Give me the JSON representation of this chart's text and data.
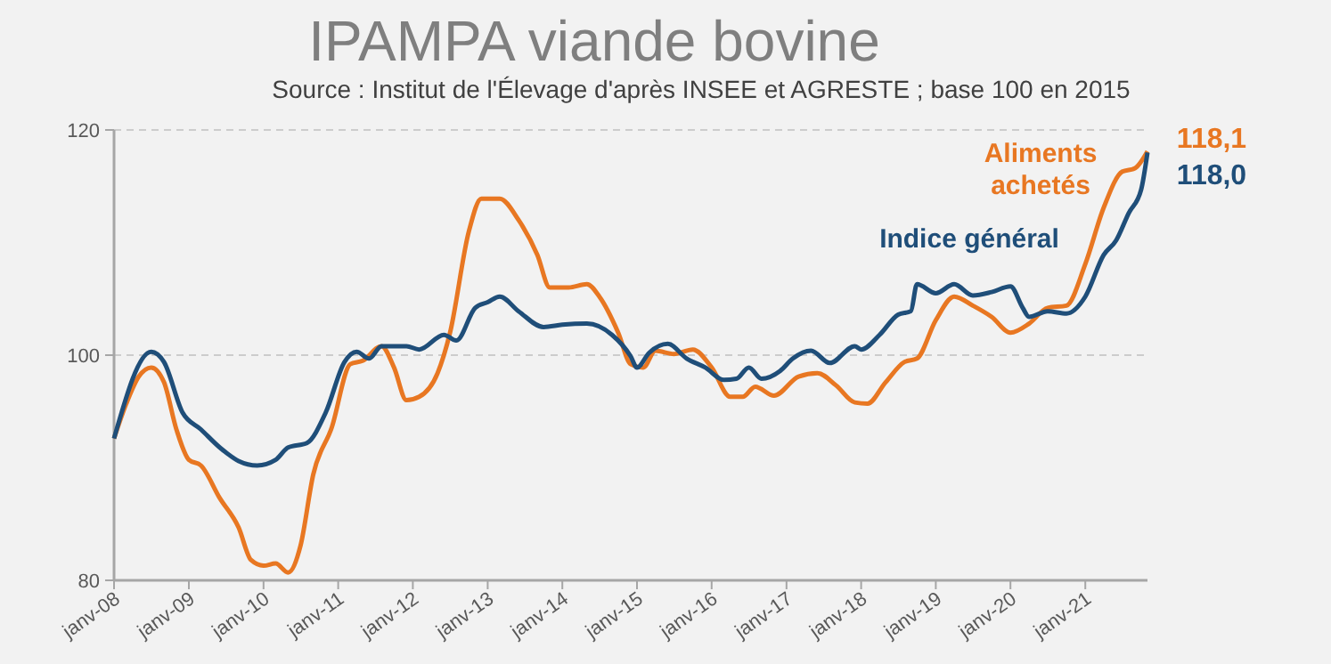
{
  "chart_data": {
    "type": "line",
    "title": "IPAMPA viande bovine",
    "subtitle": "Source : Institut de l'Élevage d'après INSEE et AGRESTE ; base 100 en 2015",
    "ylim": [
      80,
      120
    ],
    "yticks": [
      80,
      100,
      120
    ],
    "xlim": [
      "2008-01",
      "2021-11"
    ],
    "xticks": [
      {
        "value": "2008-01",
        "label": "janv-08"
      },
      {
        "value": "2009-01",
        "label": "janv-09"
      },
      {
        "value": "2010-01",
        "label": "janv-10"
      },
      {
        "value": "2011-01",
        "label": "janv-11"
      },
      {
        "value": "2012-01",
        "label": "janv-12"
      },
      {
        "value": "2013-01",
        "label": "janv-13"
      },
      {
        "value": "2014-01",
        "label": "janv-14"
      },
      {
        "value": "2015-01",
        "label": "janv-15"
      },
      {
        "value": "2016-01",
        "label": "janv-16"
      },
      {
        "value": "2017-01",
        "label": "janv-17"
      },
      {
        "value": "2018-01",
        "label": "janv-18"
      },
      {
        "value": "2019-01",
        "label": "janv-19"
      },
      {
        "value": "2020-01",
        "label": "janv-20"
      },
      {
        "value": "2021-01",
        "label": "janv-21"
      }
    ],
    "grid": "y",
    "legend": false,
    "marker": "none",
    "line_style": "solid",
    "series": [
      {
        "name": "Aliments achetés",
        "color": "#e87722",
        "x": [
          "2008-01",
          "2008-03",
          "2008-05",
          "2008-07",
          "2008-09",
          "2008-11",
          "2009-01",
          "2009-03",
          "2009-06",
          "2009-09",
          "2009-11",
          "2010-01",
          "2010-03",
          "2010-05",
          "2010-07",
          "2010-09",
          "2010-12",
          "2011-03",
          "2011-05",
          "2011-08",
          "2011-10",
          "2011-12",
          "2012-02",
          "2012-05",
          "2012-07",
          "2012-10",
          "2012-12",
          "2013-03",
          "2013-06",
          "2013-09",
          "2013-11",
          "2014-02",
          "2014-05",
          "2014-07",
          "2014-10",
          "2014-12",
          "2015-02",
          "2015-04",
          "2015-07",
          "2015-10",
          "2016-01",
          "2016-04",
          "2016-06",
          "2016-08",
          "2016-11",
          "2017-03",
          "2017-06",
          "2017-09",
          "2017-12",
          "2018-02",
          "2018-05",
          "2018-08",
          "2018-10",
          "2019-01",
          "2019-04",
          "2019-07",
          "2019-10",
          "2020-01",
          "2020-04",
          "2020-07",
          "2020-10",
          "2021-01",
          "2021-04",
          "2021-07",
          "2021-09",
          "2021-11"
        ],
        "values": [
          92.6,
          95.7,
          98.1,
          98.9,
          97.6,
          93.4,
          90.7,
          90.2,
          87.3,
          84.7,
          81.8,
          81.3,
          81.5,
          80.7,
          83.1,
          89.4,
          93.6,
          99.2,
          99.5,
          100.8,
          98.9,
          96.0,
          96.3,
          98.4,
          102.0,
          111.0,
          113.9,
          113.9,
          112.0,
          108.9,
          106.0,
          106.0,
          106.3,
          105.2,
          102.0,
          99.2,
          98.9,
          100.4,
          100.1,
          100.5,
          98.9,
          96.3,
          96.3,
          97.2,
          96.4,
          98.1,
          98.4,
          97.3,
          95.8,
          95.7,
          97.6,
          99.4,
          99.7,
          103.1,
          105.2,
          104.4,
          103.4,
          102.0,
          102.8,
          104.2,
          104.4,
          108.1,
          113.1,
          116.3,
          116.6,
          118.1
        ],
        "value_labels": [
          null,
          null,
          null,
          null,
          null,
          null,
          null,
          null,
          null,
          null,
          null,
          null,
          null,
          null,
          null,
          null,
          null,
          null,
          null,
          null,
          null,
          null,
          null,
          null,
          null,
          null,
          null,
          null,
          null,
          null,
          null,
          null,
          null,
          null,
          null,
          null,
          null,
          null,
          null,
          null,
          null,
          null,
          null,
          null,
          null,
          null,
          null,
          null,
          null,
          null,
          null,
          null,
          null,
          null,
          null,
          null,
          null,
          null,
          null,
          null,
          null,
          null,
          null,
          null,
          null,
          "118,1"
        ]
      },
      {
        "name": "Indice général",
        "color": "#1f4e79",
        "x": [
          "2008-01",
          "2008-07",
          "2008-09",
          "2008-12",
          "2009-03",
          "2009-06",
          "2009-09",
          "2009-12",
          "2010-03",
          "2010-05",
          "2010-08",
          "2010-11",
          "2011-02",
          "2011-04",
          "2011-06",
          "2011-08",
          "2011-12",
          "2012-02",
          "2012-06",
          "2012-08",
          "2012-11",
          "2013-01",
          "2013-03",
          "2013-06",
          "2013-10",
          "2014-01",
          "2014-05",
          "2014-09",
          "2014-12",
          "2015-01",
          "2015-03",
          "2015-06",
          "2015-09",
          "2015-12",
          "2016-03",
          "2016-05",
          "2016-07",
          "2016-09",
          "2016-12",
          "2017-02",
          "2017-05",
          "2017-08",
          "2017-12",
          "2018-01",
          "2018-04",
          "2018-07",
          "2018-09",
          "2018-10",
          "2019-01",
          "2019-04",
          "2019-07",
          "2019-10",
          "2020-01",
          "2020-03",
          "2020-04",
          "2020-07",
          "2020-10",
          "2021-01",
          "2021-04",
          "2021-06",
          "2021-08",
          "2021-10",
          "2021-11"
        ],
        "values": [
          92.6,
          100.3,
          99.4,
          94.9,
          93.4,
          91.8,
          90.6,
          90.2,
          90.7,
          91.8,
          92.2,
          94.9,
          99.4,
          100.3,
          99.7,
          100.8,
          100.8,
          100.5,
          101.8,
          101.3,
          104.2,
          104.7,
          105.2,
          103.9,
          102.5,
          102.7,
          102.8,
          101.8,
          99.9,
          98.9,
          100.2,
          101.0,
          99.7,
          98.9,
          97.8,
          97.9,
          98.9,
          97.9,
          98.6,
          99.7,
          100.4,
          99.3,
          100.8,
          100.5,
          101.8,
          103.6,
          103.9,
          106.3,
          105.5,
          106.3,
          105.3,
          105.6,
          106.1,
          104.2,
          103.4,
          103.9,
          103.7,
          105.2,
          108.9,
          110.2,
          112.6,
          114.7,
          118.0
        ],
        "value_labels": [
          null,
          null,
          null,
          null,
          null,
          null,
          null,
          null,
          null,
          null,
          null,
          null,
          null,
          null,
          null,
          null,
          null,
          null,
          null,
          null,
          null,
          null,
          null,
          null,
          null,
          null,
          null,
          null,
          null,
          null,
          null,
          null,
          null,
          null,
          null,
          null,
          null,
          null,
          null,
          null,
          null,
          null,
          null,
          null,
          null,
          null,
          null,
          null,
          null,
          null,
          null,
          null,
          null,
          null,
          null,
          null,
          null,
          null,
          null,
          null,
          null,
          null,
          "118,0"
        ]
      }
    ]
  }
}
